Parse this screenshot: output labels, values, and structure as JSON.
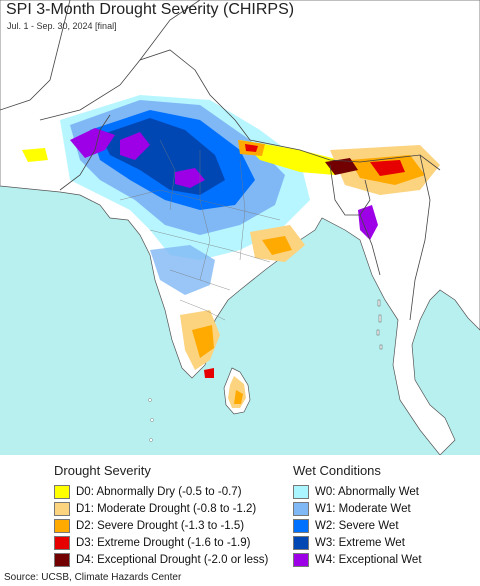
{
  "header": {
    "title": "SPI 3-Month Drought Severity (CHIRPS)",
    "subtitle": "Jul. 1 - Sep. 30, 2024 [final]"
  },
  "legend": {
    "drought": {
      "heading": "Drought Severity",
      "items": [
        {
          "label": "D0: Abnormally Dry (-0.5 to -0.7)",
          "color": "#ffff00"
        },
        {
          "label": "D1: Moderate Drought (-0.8 to -1.2)",
          "color": "#fcd37f"
        },
        {
          "label": "D2: Severe Drought (-1.3 to -1.5)",
          "color": "#ffaa00"
        },
        {
          "label": "D3: Extreme Drought (-1.6 to -1.9)",
          "color": "#e60000"
        },
        {
          "label": "D4: Exceptional Drought (-2.0 or less)",
          "color": "#730000"
        }
      ]
    },
    "wet": {
      "heading": "Wet Conditions",
      "items": [
        {
          "label": "W0: Abnormally Wet",
          "color": "#aaf5ff"
        },
        {
          "label": "W1: Moderate Wet",
          "color": "#7fb8f5"
        },
        {
          "label": "W2: Severe Wet",
          "color": "#0070ff"
        },
        {
          "label": "W3: Extreme Wet",
          "color": "#0047b3"
        },
        {
          "label": "W4: Exceptional Wet",
          "color": "#9d00e6"
        }
      ]
    }
  },
  "footer": {
    "source": "Source: UCSB, Climate Hazards Center"
  },
  "colors": {
    "ocean": "#b8efef",
    "land_outside": "#ffffff",
    "border": "#444444"
  }
}
